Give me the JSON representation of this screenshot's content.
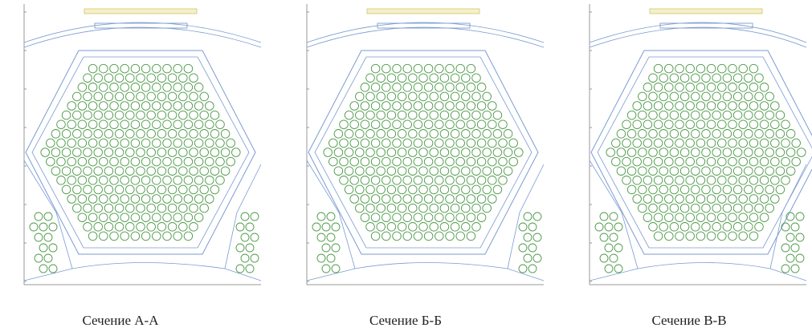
{
  "captions": [
    "Сечение А-А",
    "Сечение Б-Б",
    "Сечение В-В"
  ]
}
